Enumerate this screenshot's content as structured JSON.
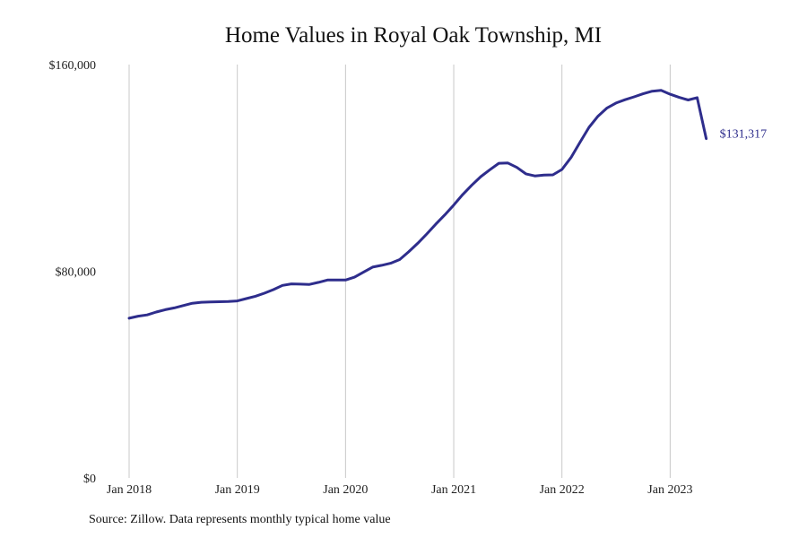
{
  "chart_data": {
    "type": "line",
    "title": "Home Values in Royal Oak Township, MI",
    "xlabel": "",
    "ylabel": "",
    "ylim": [
      0,
      160000
    ],
    "yticks": [
      0,
      80000,
      160000
    ],
    "ytick_labels": [
      "$0",
      "$80,000",
      "$160,000"
    ],
    "xlim": [
      "2018-01",
      "2023-12"
    ],
    "xticks": [
      "2018-01",
      "2019-01",
      "2020-01",
      "2021-01",
      "2022-01",
      "2023-01"
    ],
    "xtick_labels": [
      "Jan 2018",
      "Jan 2019",
      "Jan 2020",
      "Jan 2021",
      "Jan 2022",
      "Jan 2023"
    ],
    "grid": "vertical",
    "line_color": "#2e2d8c",
    "grid_color": "#c8c8c8",
    "end_label": "$131,317",
    "series": [
      {
        "x": [
          "2018-01",
          "2018-02",
          "2018-03",
          "2018-04",
          "2018-05",
          "2018-06",
          "2018-07",
          "2018-08",
          "2018-09",
          "2018-10",
          "2018-11",
          "2018-12",
          "2019-01",
          "2019-02",
          "2019-03",
          "2019-04",
          "2019-05",
          "2019-06",
          "2019-07",
          "2019-08",
          "2019-09",
          "2019-10",
          "2019-11",
          "2019-12",
          "2020-01",
          "2020-02",
          "2020-03",
          "2020-04",
          "2020-05",
          "2020-06",
          "2020-07",
          "2020-08",
          "2020-09",
          "2020-10",
          "2020-11",
          "2020-12",
          "2021-01",
          "2021-02",
          "2021-03",
          "2021-04",
          "2021-05",
          "2021-06",
          "2021-07",
          "2021-08",
          "2021-09",
          "2021-10",
          "2021-11",
          "2021-12",
          "2022-01",
          "2022-02",
          "2022-03",
          "2022-04",
          "2022-05",
          "2022-06",
          "2022-07",
          "2022-08",
          "2022-09",
          "2022-10",
          "2022-11",
          "2022-12",
          "2023-01",
          "2023-02",
          "2023-03",
          "2023-04",
          "2023-05"
        ],
        "y": [
          61800,
          62600,
          63100,
          64200,
          65100,
          65800,
          66700,
          67600,
          68000,
          68100,
          68200,
          68300,
          68500,
          69400,
          70300,
          71500,
          72900,
          74500,
          75100,
          75000,
          74900,
          75700,
          76600,
          76600,
          76600,
          77700,
          79700,
          81600,
          82300,
          83100,
          84500,
          87500,
          90800,
          94400,
          98200,
          101800,
          105600,
          109700,
          113300,
          116600,
          119300,
          121800,
          121900,
          120200,
          117700,
          116900,
          117200,
          117300,
          119400,
          124000,
          129900,
          135700,
          140000,
          143200,
          145100,
          146400,
          147500,
          148700,
          149700,
          150000,
          148500,
          147300,
          146300,
          147200,
          131317
        ]
      }
    ]
  },
  "source": "Source: Zillow. Data represents monthly typical home value"
}
